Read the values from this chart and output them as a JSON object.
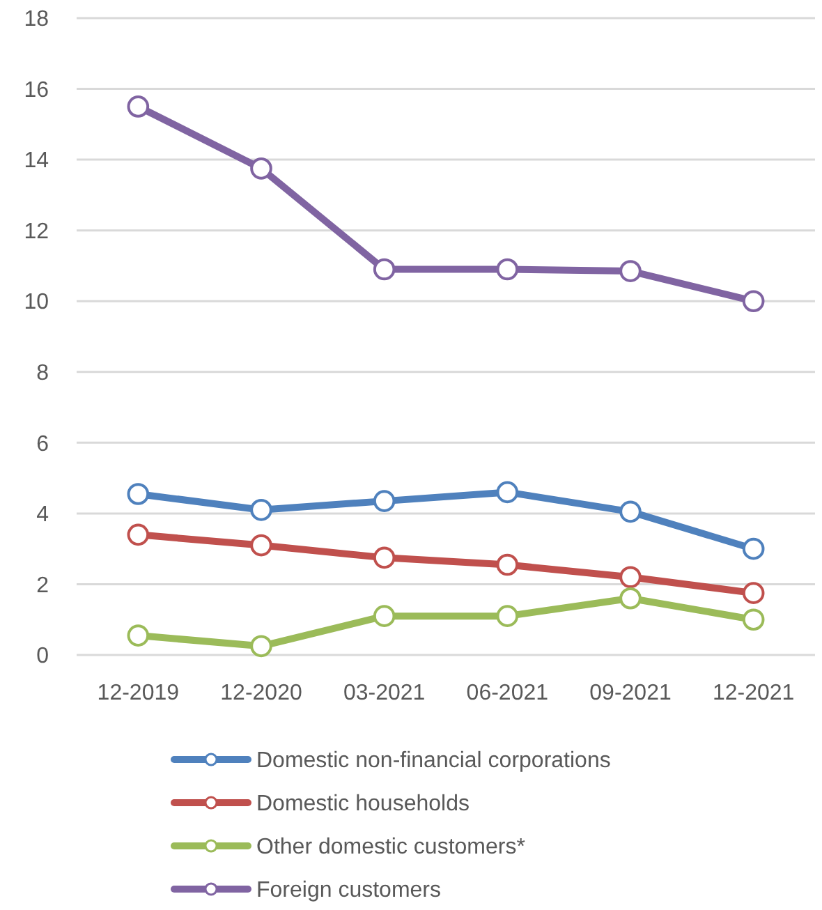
{
  "chart_data": {
    "type": "line",
    "categories": [
      "12-2019",
      "12-2020",
      "03-2021",
      "06-2021",
      "09-2021",
      "12-2021"
    ],
    "series": [
      {
        "name": "Domestic non-financial corporations",
        "color": "#4f81bd",
        "values": [
          4.55,
          4.1,
          4.35,
          4.6,
          4.05,
          3.0
        ]
      },
      {
        "name": "Domestic households",
        "color": "#c0504d",
        "values": [
          3.4,
          3.1,
          2.75,
          2.55,
          2.2,
          1.75
        ]
      },
      {
        "name": "Other domestic customers*",
        "color": "#9bbb59",
        "values": [
          0.55,
          0.25,
          1.1,
          1.1,
          1.6,
          1.0
        ]
      },
      {
        "name": "Foreign customers",
        "color": "#8064a2",
        "values": [
          15.5,
          13.75,
          10.9,
          10.9,
          10.85,
          10.0
        ]
      }
    ],
    "ylim": [
      0,
      18
    ],
    "yticks": [
      0,
      2,
      4,
      6,
      8,
      10,
      12,
      14,
      16,
      18
    ],
    "grid": "y",
    "legend": "bottom",
    "marker": "circle"
  }
}
